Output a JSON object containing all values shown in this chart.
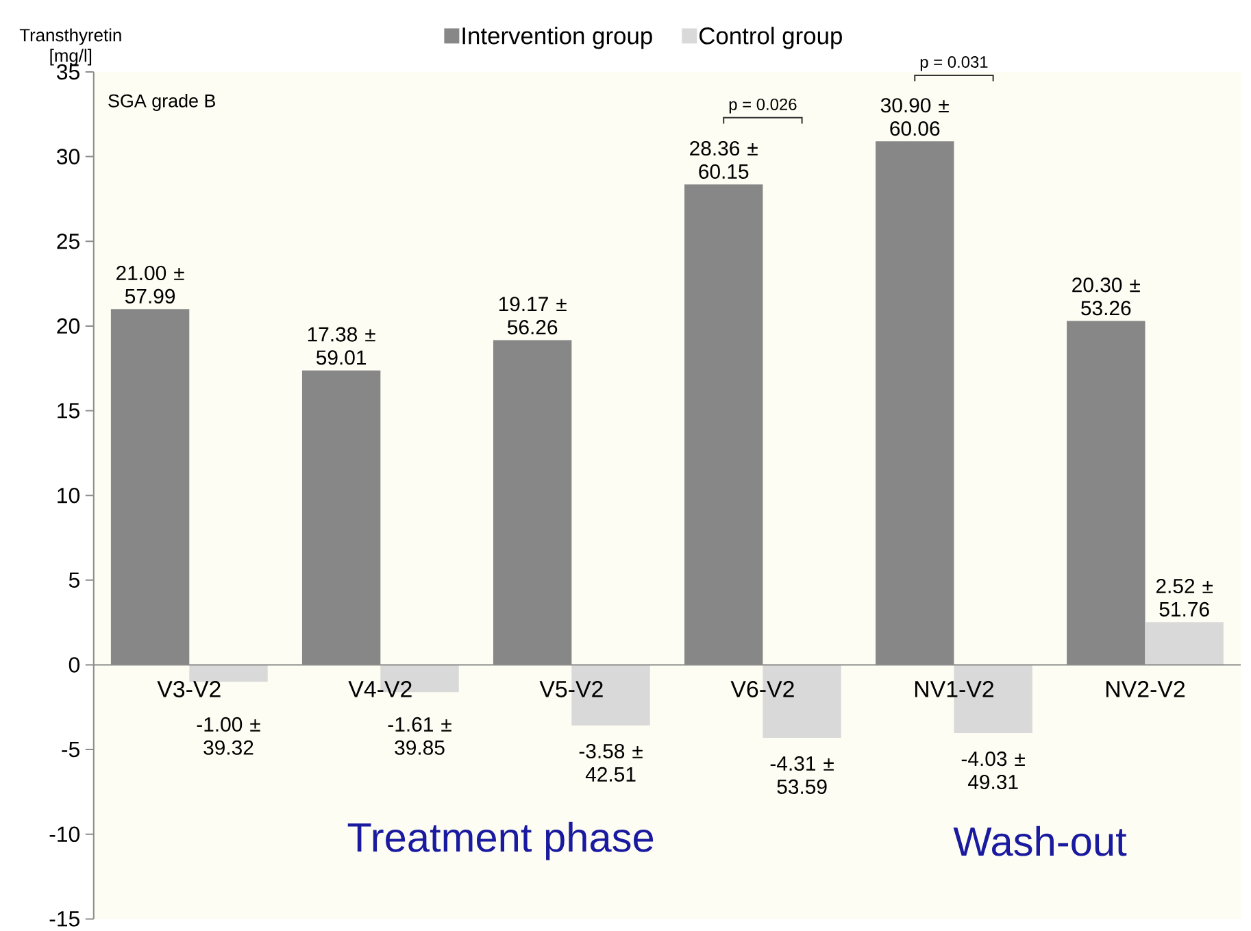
{
  "chart_data": {
    "type": "bar",
    "ylabel": "Transthyretin [mg/l]",
    "categories": [
      "V3-V2",
      "V4-V2",
      "V5-V2",
      "V6-V2",
      "NV1-V2",
      "NV2-V2"
    ],
    "series": [
      {
        "name": "Intervention group",
        "color": "#878787",
        "values": [
          21.0,
          17.38,
          19.17,
          28.36,
          30.9,
          20.3
        ],
        "value_labels": [
          "21.00 ± 57.99",
          "17.38 ± 59.01",
          "19.17 ± 56.26",
          "28.36 ± 60.15",
          "30.90 ± 60.06",
          "20.30 ± 53.26"
        ]
      },
      {
        "name": "Control group",
        "color": "#d9d9d9",
        "values": [
          -1.0,
          -1.61,
          -3.58,
          -4.31,
          -4.03,
          2.52
        ],
        "value_labels": [
          "-1.00 ± 39.32",
          "-1.61 ± 39.85",
          "-3.58 ± 42.51",
          "-4.31 ± 53.59",
          "-4.03 ± 49.31",
          "2.52 ± 51.76"
        ]
      }
    ],
    "ylim": [
      -15,
      35
    ],
    "yticks": [
      -15,
      -10,
      -5,
      0,
      5,
      10,
      15,
      20,
      25,
      30,
      35
    ],
    "legend": "top",
    "grid": false,
    "annotations": [
      "SGA grade B",
      "p = 0.026",
      "p = 0.031",
      "Treatment phase",
      "Wash-out"
    ]
  }
}
